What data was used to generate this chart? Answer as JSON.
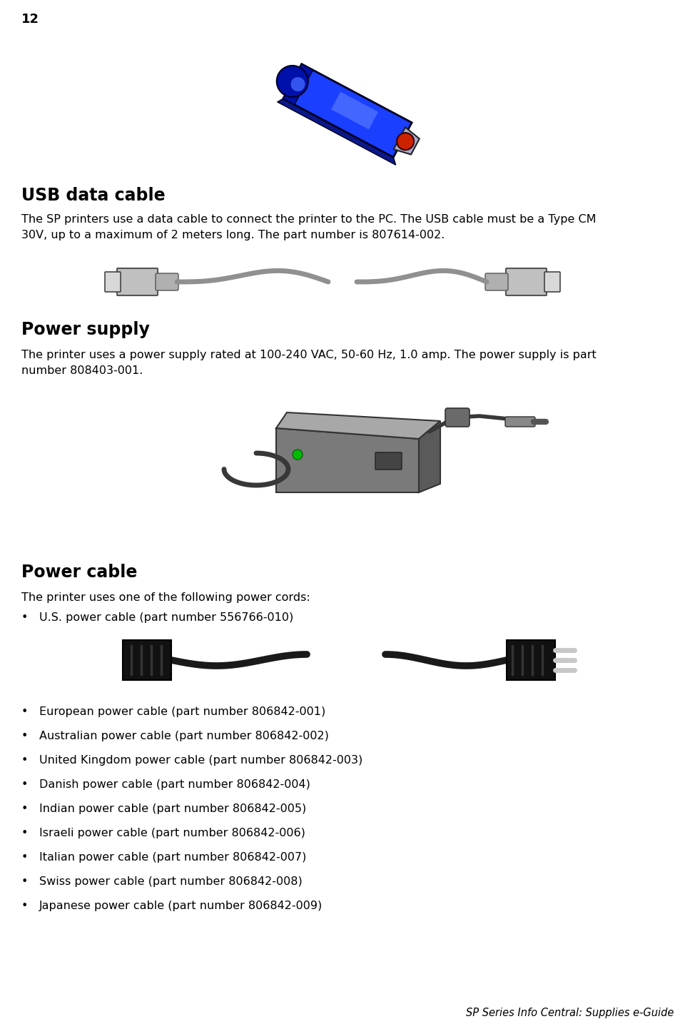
{
  "page_number": "12",
  "background_color": "#ffffff",
  "footer_text": "SP Series Info Central: Supplies e-Guide",
  "section1_title": "USB data cable",
  "section1_line1": "The SP printers use a data cable to connect the printer to the PC. The USB cable must be a Type CM",
  "section1_line2": "30V, up to a maximum of 2 meters long. The part number is 807614-002.",
  "section2_title": "Power supply",
  "section2_line1": "The printer uses a power supply rated at 100-240 VAC, 50-60 Hz, 1.0 amp. The power supply is part",
  "section2_line2": "number 808403-001.",
  "section3_title": "Power cable",
  "section3_intro": "The printer uses one of the following power cords:",
  "bullet_item0": "U.S. power cable (part number 556766-010)",
  "bullet_items": [
    "European power cable (part number 806842-001)",
    "Australian power cable (part number 806842-002)",
    "United Kingdom power cable (part number 806842-003)",
    "Danish power cable (part number 806842-004)",
    "Indian power cable (part number 806842-005)",
    "Israeli power cable (part number 806842-006)",
    "Italian power cable (part number 806842-007)",
    "Swiss power cable (part number 806842-008)",
    "Japanese power cable (part number 806842-009)"
  ],
  "title_fontsize": 17,
  "body_fontsize": 11.5,
  "bullet_fontsize": 11.5,
  "page_num_fontsize": 13,
  "footer_fontsize": 10.5,
  "text_color": "#000000",
  "usb_body_color": "#1a3fff",
  "usb_dark_color": "#0010aa",
  "usb_highlight_color": "#6688ff",
  "usb_red_color": "#cc2200",
  "cable_gray": "#909090",
  "cable_dark_gray": "#666666",
  "power_body_color": "#808080",
  "power_top_color": "#a0a0a0",
  "power_side_color": "#606060",
  "power_cable_color": "#383838",
  "black_cable_color": "#1a1a1a",
  "prong_color": "#c8c8c8",
  "green_led": "#00bb00"
}
